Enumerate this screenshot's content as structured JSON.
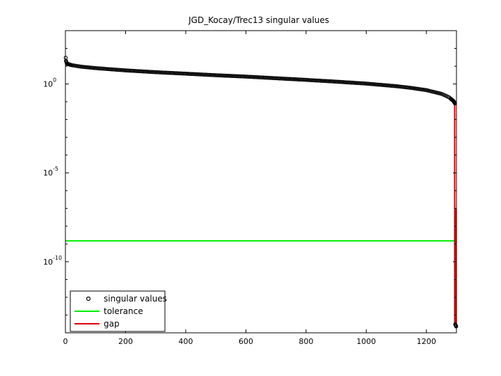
{
  "chart_data": {
    "type": "scatter",
    "title": "JGD_Kocay/Trec13 singular values",
    "xlabel": "",
    "ylabel": "",
    "xlim": [
      0,
      1300
    ],
    "ylim": [
      1e-14,
      1000.0
    ],
    "yscale": "log",
    "grid": false,
    "legend_position": "bottom-left",
    "x_ticks": [
      {
        "value": 0,
        "label": "0"
      },
      {
        "value": 200,
        "label": "200"
      },
      {
        "value": 400,
        "label": "400"
      },
      {
        "value": 600,
        "label": "600"
      },
      {
        "value": 800,
        "label": "800"
      },
      {
        "value": 1000,
        "label": "1000"
      },
      {
        "value": 1200,
        "label": "1200"
      }
    ],
    "y_ticks": [
      {
        "exponent": 0,
        "base": "10",
        "exp_label": "0"
      },
      {
        "exponent": -5,
        "base": "10",
        "exp_label": "-5"
      },
      {
        "exponent": -10,
        "base": "10",
        "exp_label": "-10"
      }
    ],
    "series": [
      {
        "name": "singular values",
        "style": "markers",
        "marker": "circle",
        "color": "#000000",
        "curve": [
          [
            1,
            30
          ],
          [
            2,
            20
          ],
          [
            5,
            14
          ],
          [
            20,
            11.5
          ],
          [
            50,
            9.5
          ],
          [
            100,
            7.8
          ],
          [
            200,
            5.8
          ],
          [
            300,
            4.6
          ],
          [
            400,
            3.8
          ],
          [
            500,
            3.1
          ],
          [
            600,
            2.6
          ],
          [
            700,
            2.1
          ],
          [
            800,
            1.7
          ],
          [
            900,
            1.35
          ],
          [
            1000,
            1.05
          ],
          [
            1100,
            0.75
          ],
          [
            1150,
            0.6
          ],
          [
            1200,
            0.45
          ],
          [
            1250,
            0.28
          ],
          [
            1275,
            0.18
          ],
          [
            1290,
            0.11
          ],
          [
            1295,
            0.08
          ]
        ],
        "tail": [
          [
            1296,
            3e-14
          ],
          [
            1297,
            2.7e-14
          ],
          [
            1298,
            2.5e-14
          ],
          [
            1299,
            2.3e-14
          ]
        ]
      },
      {
        "name": "tolerance",
        "style": "line",
        "color": "#00ee00",
        "y": 1.5e-09,
        "x_range": [
          1,
          1299
        ]
      },
      {
        "name": "gap",
        "style": "line",
        "color": "#dd0000",
        "segments": [
          [
            [
              1294,
              0.08
            ],
            [
              1294,
              3e-14
            ]
          ],
          [
            [
              1297,
              1e-07
            ],
            [
              1297,
              3e-14
            ]
          ]
        ]
      }
    ]
  }
}
